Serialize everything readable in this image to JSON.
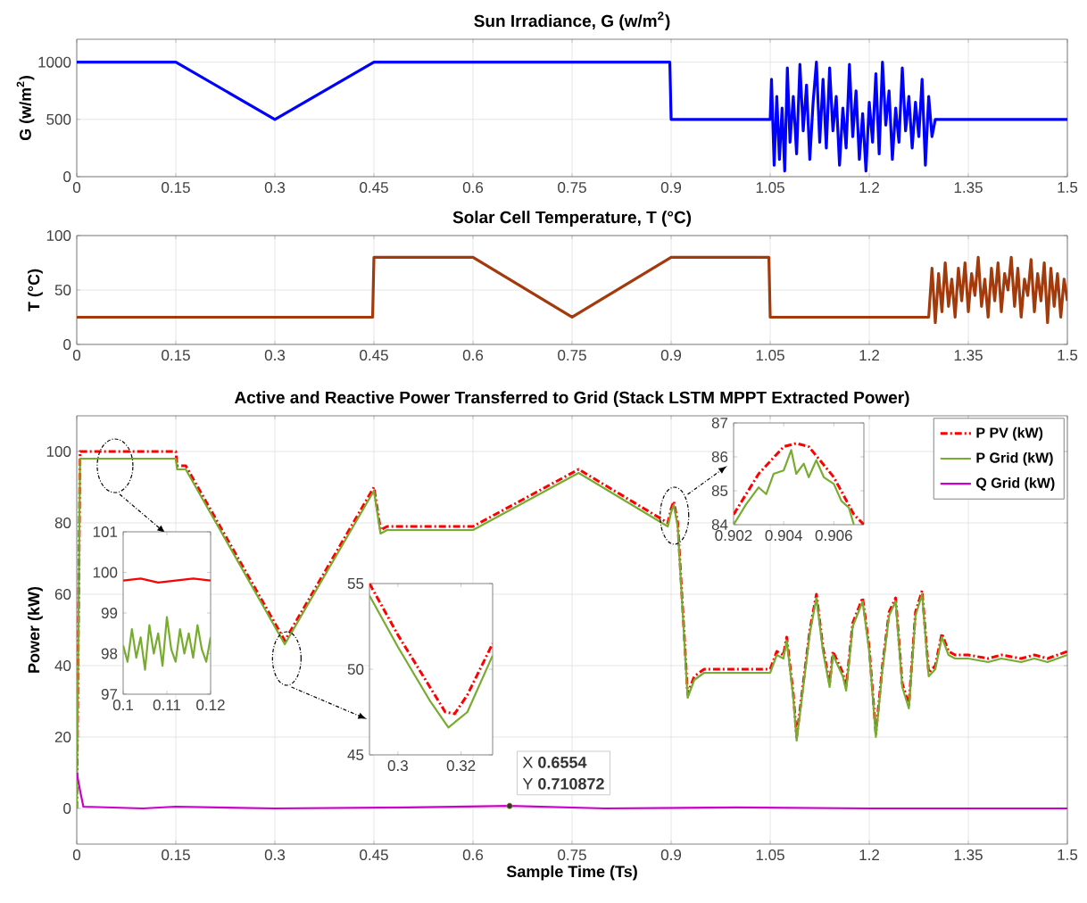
{
  "chart_data": [
    {
      "type": "line",
      "title": "Sun Irradiance, G (w/m$^{2}$)",
      "ylabel": "G (w/m$^{2}$)",
      "xlim": [
        0,
        1.5
      ],
      "ylim": [
        0,
        1200
      ],
      "xticks": [
        0,
        0.15,
        0.3,
        0.45,
        0.6,
        0.75,
        0.9,
        1.05,
        1.2,
        1.35,
        1.5
      ],
      "yticks": [
        0,
        500,
        1000
      ],
      "grid": true,
      "series": [
        {
          "color": "#0000ff",
          "x": [
            0,
            0.15,
            0.3,
            0.45,
            0.898,
            0.9,
            1.05,
            1.052,
            1.056,
            1.06,
            1.064,
            1.068,
            1.072,
            1.076,
            1.08,
            1.085,
            1.09,
            1.095,
            1.1,
            1.105,
            1.11,
            1.115,
            1.12,
            1.125,
            1.13,
            1.135,
            1.14,
            1.145,
            1.15,
            1.155,
            1.16,
            1.165,
            1.17,
            1.175,
            1.18,
            1.185,
            1.19,
            1.195,
            1.2,
            1.205,
            1.21,
            1.215,
            1.22,
            1.225,
            1.23,
            1.235,
            1.24,
            1.245,
            1.25,
            1.255,
            1.26,
            1.265,
            1.27,
            1.275,
            1.28,
            1.285,
            1.29,
            1.295,
            1.3,
            1.5
          ],
          "values": [
            1000,
            1000,
            500,
            1000,
            1000,
            500,
            500,
            850,
            100,
            700,
            150,
            600,
            50,
            950,
            300,
            700,
            200,
            980,
            400,
            800,
            150,
            650,
            1000,
            300,
            850,
            250,
            950,
            400,
            700,
            100,
            600,
            250,
            980,
            350,
            750,
            150,
            550,
            50,
            650,
            300,
            900,
            200,
            1000,
            450,
            750,
            150,
            600,
            300,
            950,
            400,
            700,
            250,
            650,
            350,
            850,
            100,
            700,
            350,
            500,
            500
          ]
        }
      ]
    },
    {
      "type": "line",
      "title": "Solar Cell Temperature, T (°C)",
      "ylabel": "T (°C)",
      "xlim": [
        0,
        1.5
      ],
      "ylim": [
        0,
        100
      ],
      "xticks": [
        0,
        0.15,
        0.3,
        0.45,
        0.6,
        0.75,
        0.9,
        1.05,
        1.2,
        1.35,
        1.5
      ],
      "yticks": [
        0,
        50,
        100
      ],
      "grid": true,
      "series": [
        {
          "color": "#a33a0c",
          "x": [
            0,
            0.448,
            0.45,
            0.6,
            0.75,
            0.9,
            1.048,
            1.05,
            1.29,
            1.295,
            1.3,
            1.305,
            1.31,
            1.315,
            1.32,
            1.325,
            1.33,
            1.335,
            1.34,
            1.345,
            1.35,
            1.355,
            1.36,
            1.365,
            1.37,
            1.375,
            1.38,
            1.385,
            1.39,
            1.395,
            1.4,
            1.405,
            1.41,
            1.415,
            1.42,
            1.425,
            1.43,
            1.435,
            1.44,
            1.445,
            1.45,
            1.455,
            1.46,
            1.465,
            1.47,
            1.475,
            1.48,
            1.485,
            1.49,
            1.495,
            1.5
          ],
          "values": [
            25,
            25,
            80,
            80,
            25,
            80,
            80,
            25,
            25,
            70,
            20,
            65,
            30,
            75,
            35,
            60,
            25,
            70,
            40,
            75,
            30,
            65,
            45,
            80,
            35,
            60,
            25,
            70,
            40,
            75,
            30,
            65,
            50,
            80,
            35,
            70,
            25,
            60,
            45,
            78,
            30,
            65,
            40,
            75,
            20,
            70,
            35,
            65,
            25,
            60,
            40
          ]
        }
      ]
    },
    {
      "type": "line",
      "title": "Active and Reactive Power Transferred to Grid (Stack LSTM MPPT Extracted Power)",
      "xlabel": "Sample Time (Ts)",
      "ylabel": "Power (kW)",
      "xlim": [
        0,
        1.5
      ],
      "ylim": [
        -10,
        110
      ],
      "xticks": [
        0,
        0.15,
        0.3,
        0.45,
        0.6,
        0.75,
        0.9,
        1.05,
        1.2,
        1.35,
        1.5
      ],
      "yticks": [
        0,
        20,
        40,
        60,
        80,
        100
      ],
      "grid": true,
      "legend": "top right",
      "annotations": [
        {
          "text": "X **0.6554**",
          "x": 0.6554,
          "y": 0.710872
        },
        {
          "text": "Y **0.710872**",
          "x": 0.6554,
          "y": 0.710872
        }
      ],
      "series": [
        {
          "name": "P PV (kW)",
          "color": "#ff0000",
          "line_style": "dashed",
          "x": [
            0,
            0.005,
            0.15,
            0.152,
            0.165,
            0.315,
            0.45,
            0.46,
            0.47,
            0.6,
            0.63,
            0.76,
            0.895,
            0.9,
            0.904,
            0.91,
            0.925,
            0.935,
            0.95,
            1.05,
            1.06,
            1.07,
            1.075,
            1.085,
            1.09,
            1.1,
            1.11,
            1.12,
            1.13,
            1.14,
            1.145,
            1.15,
            1.16,
            1.165,
            1.175,
            1.19,
            1.2,
            1.21,
            1.22,
            1.23,
            1.24,
            1.25,
            1.26,
            1.27,
            1.28,
            1.29,
            1.3,
            1.31,
            1.32,
            1.33,
            1.35,
            1.38,
            1.4,
            1.43,
            1.45,
            1.47,
            1.5
          ],
          "values": [
            0,
            100,
            100,
            96,
            96,
            47,
            90,
            78,
            79,
            79,
            82,
            95,
            80,
            84,
            86,
            80,
            32,
            37,
            39,
            39,
            44,
            43,
            48,
            32,
            20,
            35,
            50,
            60,
            45,
            35,
            44,
            42,
            38,
            34,
            52,
            59,
            45,
            21,
            40,
            55,
            59,
            35,
            29,
            55,
            61,
            38,
            40,
            49,
            44,
            43,
            43,
            42,
            43,
            42,
            43,
            42,
            44
          ]
        },
        {
          "name": "P Grid (kW)",
          "color": "#77ac30",
          "x": [
            0,
            0.005,
            0.15,
            0.152,
            0.165,
            0.315,
            0.45,
            0.46,
            0.47,
            0.6,
            0.63,
            0.76,
            0.895,
            0.9,
            0.904,
            0.91,
            0.925,
            0.935,
            0.95,
            1.05,
            1.06,
            1.07,
            1.075,
            1.085,
            1.09,
            1.1,
            1.11,
            1.12,
            1.13,
            1.14,
            1.145,
            1.15,
            1.16,
            1.165,
            1.175,
            1.19,
            1.2,
            1.21,
            1.22,
            1.23,
            1.24,
            1.25,
            1.26,
            1.27,
            1.28,
            1.29,
            1.3,
            1.31,
            1.32,
            1.33,
            1.35,
            1.38,
            1.4,
            1.43,
            1.45,
            1.47,
            1.5
          ],
          "values": [
            0,
            98,
            98,
            95,
            95,
            46,
            89,
            77,
            78,
            78,
            81,
            94,
            79,
            83,
            85,
            79,
            31,
            36,
            38,
            38,
            43,
            42,
            47,
            31,
            19,
            34,
            49,
            59,
            44,
            34,
            43,
            41,
            37,
            33,
            51,
            58,
            44,
            20,
            39,
            54,
            58,
            34,
            28,
            54,
            60,
            37,
            39,
            48,
            43,
            42,
            42,
            41,
            42,
            41,
            42,
            41,
            43
          ]
        },
        {
          "name": "Q Grid (kW)",
          "color": "#cc00cc",
          "x": [
            0,
            0.005,
            0.01,
            0.1,
            0.15,
            0.3,
            0.5,
            0.6554,
            0.8,
            1.0,
            1.2,
            1.5
          ],
          "values": [
            10,
            5,
            0.5,
            0,
            0.5,
            0,
            0.3,
            0.7,
            0,
            0.3,
            0,
            0
          ]
        }
      ]
    },
    {
      "type": "line",
      "xlim": [
        0.1,
        0.12
      ],
      "ylim": [
        97,
        101
      ],
      "xticks": [
        0.1,
        0.11,
        0.12
      ],
      "yticks": [
        97,
        98,
        99,
        100,
        101
      ],
      "series": [
        {
          "color": "#ff0000",
          "x": [
            0.1,
            0.104,
            0.108,
            0.112,
            0.116,
            0.12
          ],
          "values": [
            99.8,
            99.85,
            99.75,
            99.8,
            99.85,
            99.8
          ]
        },
        {
          "color": "#77ac30",
          "x": [
            0.1,
            0.101,
            0.102,
            0.103,
            0.104,
            0.105,
            0.106,
            0.107,
            0.108,
            0.109,
            0.11,
            0.111,
            0.112,
            0.113,
            0.114,
            0.115,
            0.116,
            0.117,
            0.118,
            0.119,
            0.12
          ],
          "values": [
            98.2,
            97.8,
            98.6,
            97.9,
            98.4,
            97.6,
            98.7,
            98.0,
            98.5,
            97.7,
            98.9,
            98.1,
            97.8,
            98.6,
            98.0,
            98.5,
            97.9,
            98.7,
            98.1,
            97.8,
            98.4
          ]
        }
      ]
    },
    {
      "type": "line",
      "xlim": [
        0.291,
        0.33
      ],
      "ylim": [
        45,
        55
      ],
      "xticks": [
        0.3,
        0.32
      ],
      "yticks": [
        45,
        50,
        55
      ],
      "series": [
        {
          "color": "#ff0000",
          "line_style": "dashed",
          "x": [
            0.291,
            0.3,
            0.31,
            0.315,
            0.318,
            0.322,
            0.33
          ],
          "values": [
            55,
            52,
            49,
            47.5,
            47.4,
            48.5,
            51.5
          ]
        },
        {
          "color": "#77ac30",
          "x": [
            0.291,
            0.3,
            0.31,
            0.316,
            0.322,
            0.33
          ],
          "values": [
            54.3,
            51.3,
            48.2,
            46.6,
            47.5,
            50.8
          ]
        }
      ]
    },
    {
      "type": "line",
      "xlim": [
        0.902,
        0.9072
      ],
      "ylim": [
        84,
        87
      ],
      "xticks": [
        0.902,
        0.904,
        0.906
      ],
      "yticks": [
        84,
        85,
        86,
        87
      ],
      "series": [
        {
          "color": "#ff0000",
          "line_style": "dashed",
          "x": [
            0.902,
            0.903,
            0.904,
            0.9045,
            0.905,
            0.906,
            0.9068,
            0.9072
          ],
          "values": [
            84.3,
            85.5,
            86.3,
            86.4,
            86.3,
            85.4,
            84.3,
            84
          ]
        },
        {
          "color": "#77ac30",
          "x": [
            0.902,
            0.9025,
            0.903,
            0.9033,
            0.9036,
            0.904,
            0.9043,
            0.9045,
            0.9048,
            0.905,
            0.9053,
            0.9056,
            0.906,
            0.9063,
            0.9066,
            0.9068
          ],
          "values": [
            84,
            84.6,
            85.1,
            84.9,
            85.5,
            85.6,
            86.2,
            85.5,
            85.8,
            85.4,
            85.9,
            85.4,
            85.2,
            84.7,
            84.5,
            84
          ]
        }
      ]
    }
  ]
}
